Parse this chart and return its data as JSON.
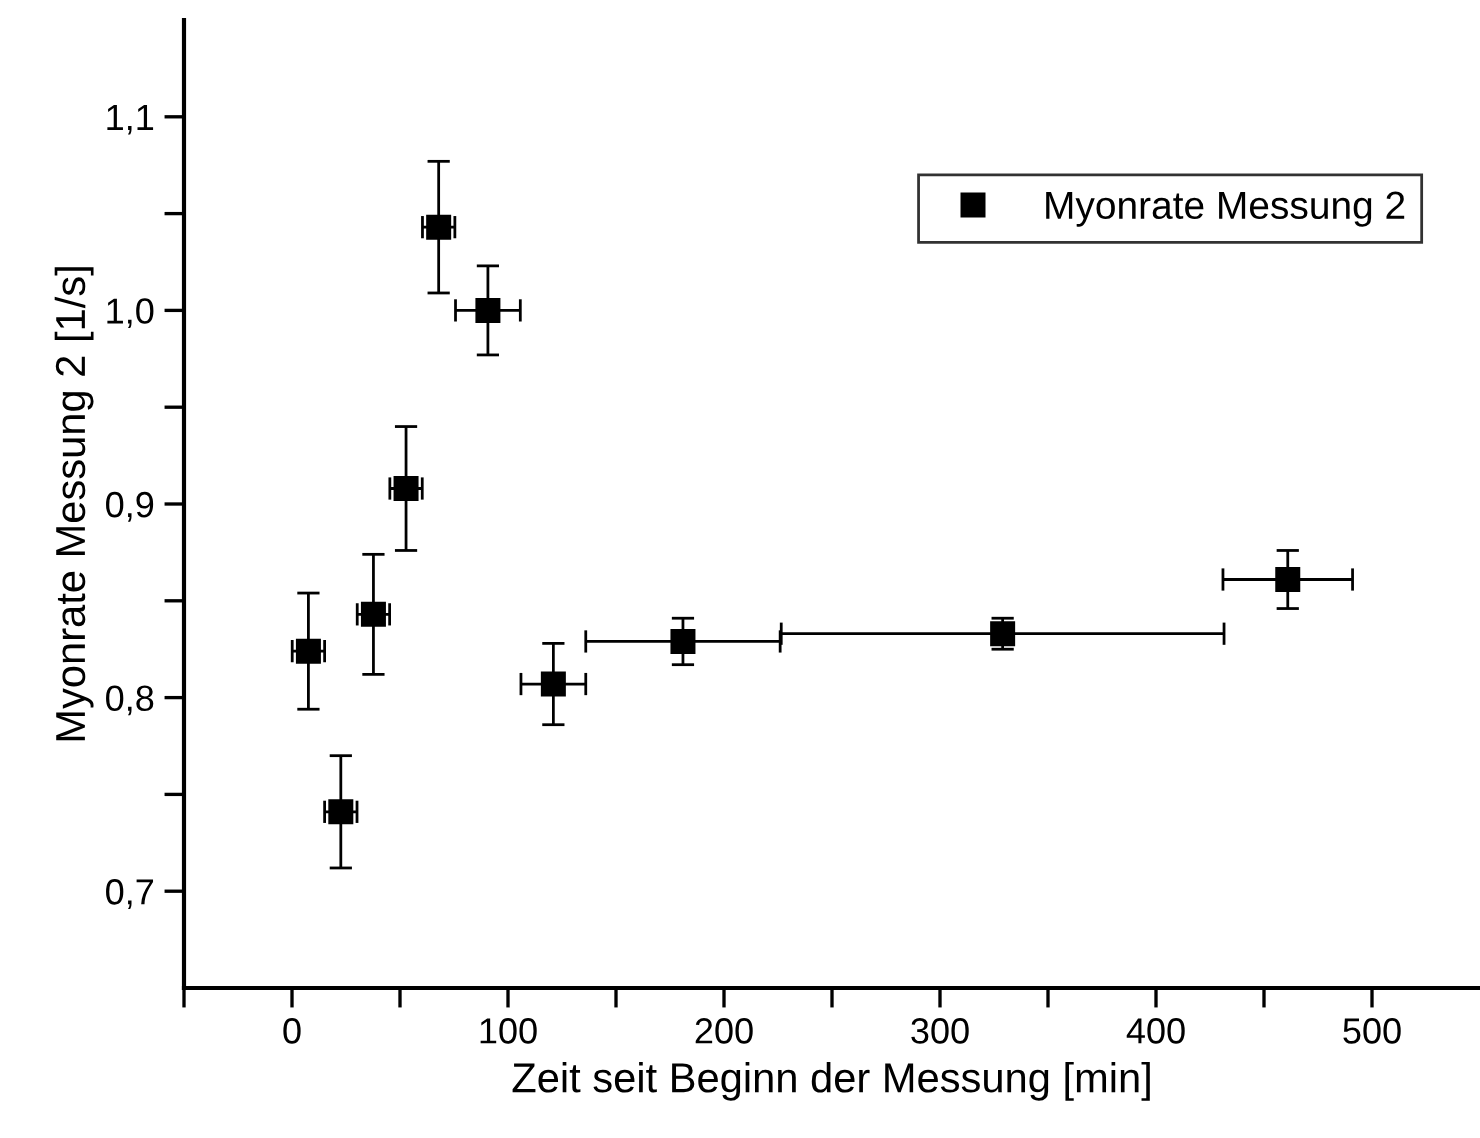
{
  "chart_data": {
    "type": "scatter",
    "xlabel": "Zeit seit Beginn der Messung [min]",
    "ylabel": "Myonrate Messung 2 [1/s]",
    "xlim": [
      -50,
      550
    ],
    "ylim": [
      0.65,
      1.15
    ],
    "xticks": [
      {
        "value": -50,
        "label": null
      },
      0,
      {
        "value": 50,
        "label": null
      },
      100,
      {
        "value": 150,
        "label": null
      },
      200,
      {
        "value": 250,
        "label": null
      },
      300,
      {
        "value": 350,
        "label": null
      },
      400,
      {
        "value": 450,
        "label": null
      },
      500
    ],
    "yticks": [
      {
        "value": 0.7,
        "label": "0,7"
      },
      {
        "value": 0.75,
        "label": null
      },
      {
        "value": 0.8,
        "label": "0,8"
      },
      {
        "value": 0.85,
        "label": null
      },
      {
        "value": 0.9,
        "label": "0,9"
      },
      {
        "value": 0.95,
        "label": null
      },
      {
        "value": 1.0,
        "label": "1,0"
      },
      {
        "value": 1.05,
        "label": null
      },
      {
        "value": 1.1,
        "label": "1,1"
      }
    ],
    "marker": "square",
    "grid": false,
    "legend": "top right",
    "series": [
      {
        "name": "Myonrate Messung 2",
        "color": "#000000",
        "x": [
          7.6,
          22.6,
          37.7,
          52.8,
          67.9,
          90.7,
          121,
          181,
          329,
          461
        ],
        "values": [
          0.824,
          0.741,
          0.843,
          0.908,
          1.043,
          1.0,
          0.807,
          0.829,
          0.833,
          0.861
        ],
        "errors": [
          0.03,
          0.029,
          0.031,
          0.032,
          0.034,
          0.023,
          0.021,
          0.012,
          0.008,
          0.015
        ],
        "xerrors": [
          7.5,
          7.5,
          7.5,
          7.5,
          7.5,
          15,
          15,
          45,
          102.5,
          30
        ]
      }
    ]
  }
}
